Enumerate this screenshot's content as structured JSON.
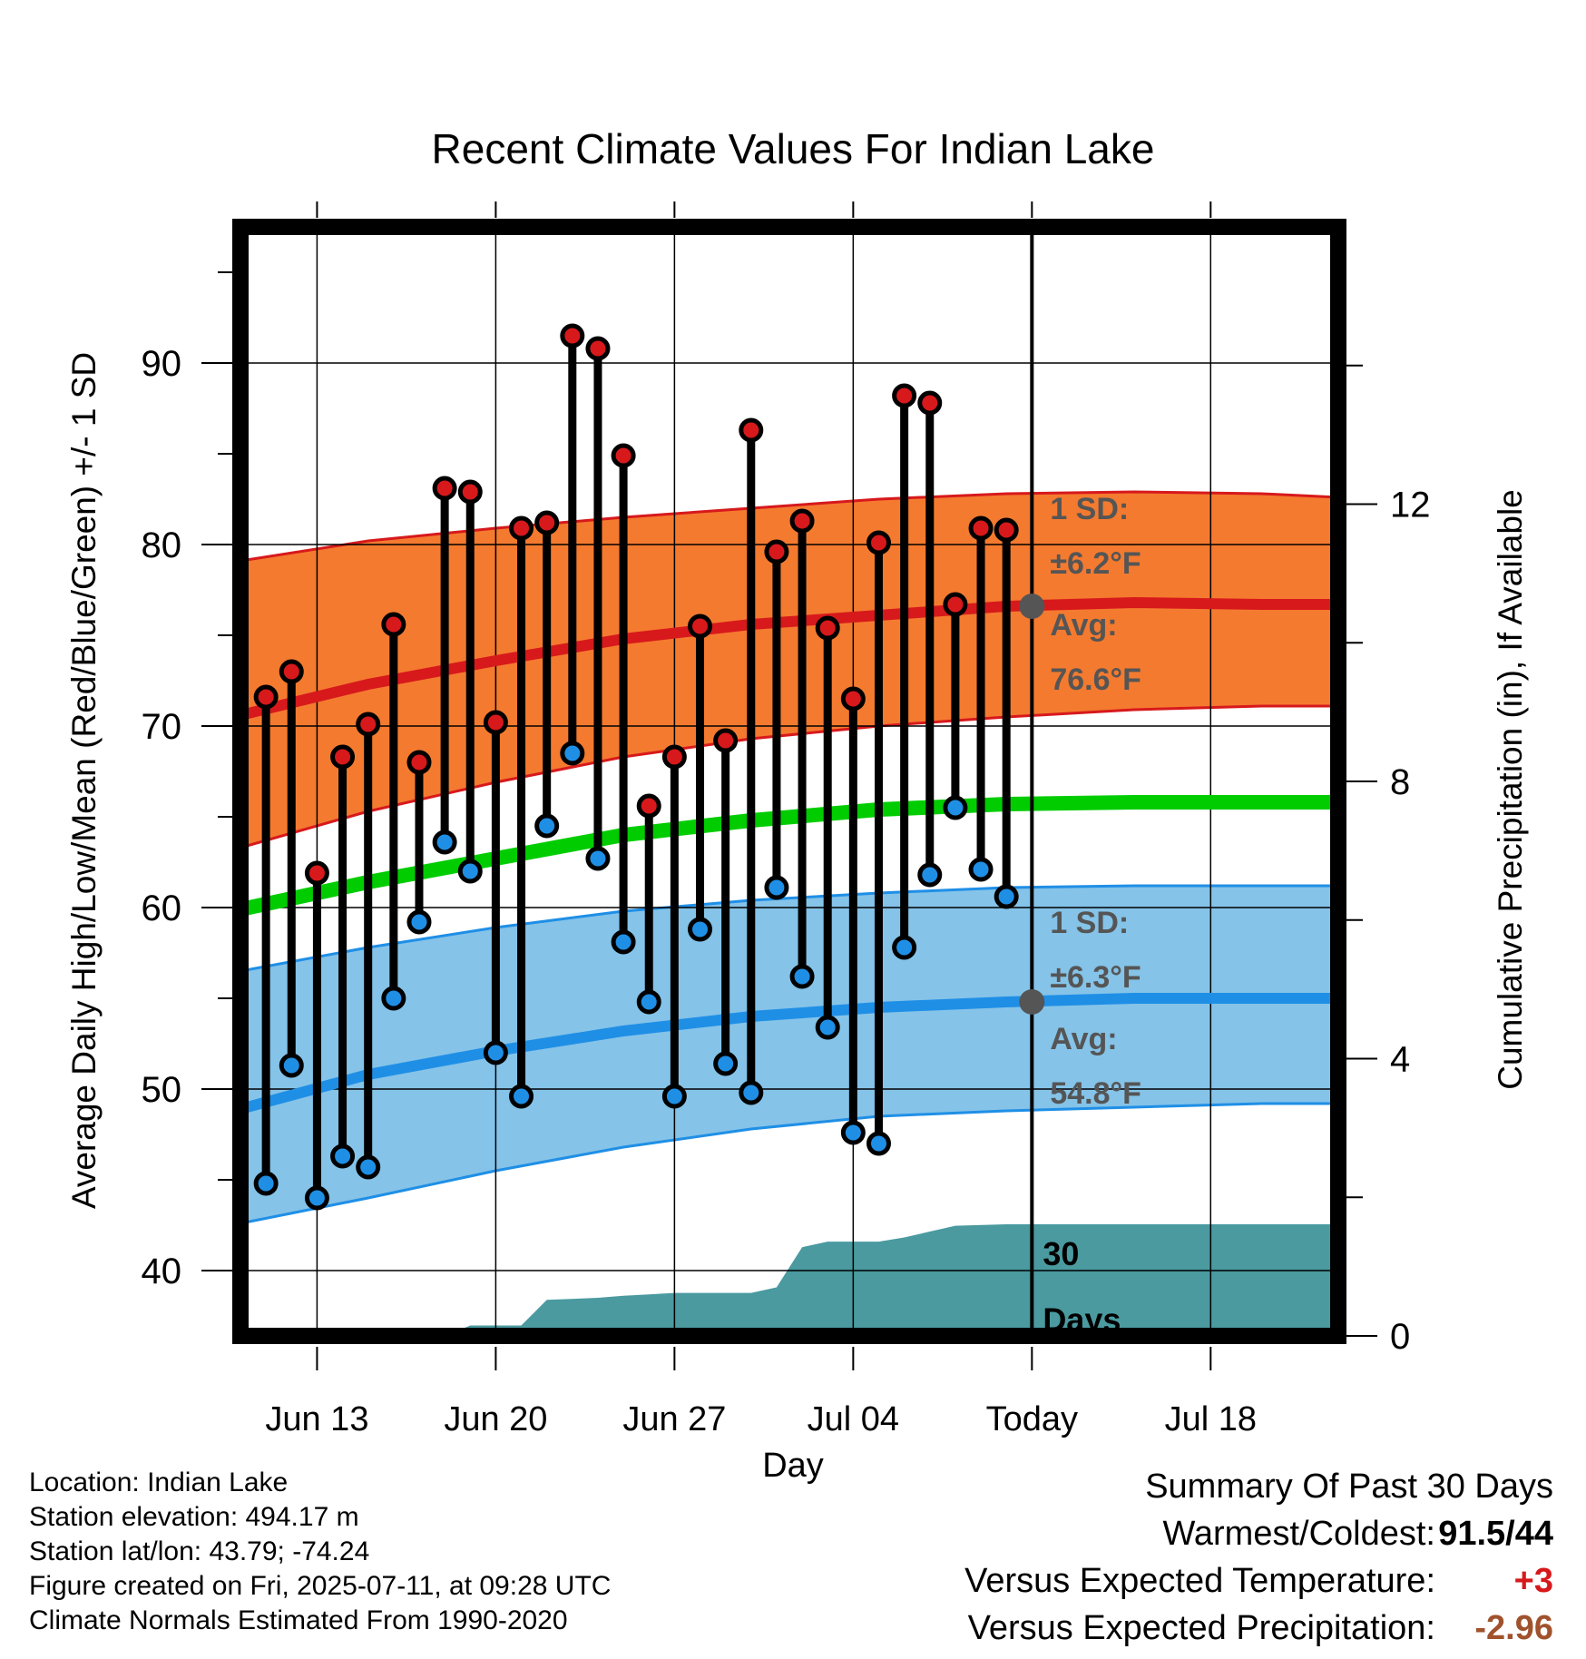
{
  "chart_data": {
    "type": "line",
    "title": "Recent Climate Values For Indian Lake",
    "xlabel": "Day",
    "ylabel": "Average Daily High/Low/Mean (Red/Blue/Green) +/- 1 SD",
    "ylabel_right": "Cumulative Precipitation (in), If Available",
    "xlim": [
      "2025-06-10",
      "2025-07-23"
    ],
    "ylim": [
      36.4,
      97.5
    ],
    "y2lim": [
      0,
      16.0
    ],
    "x_ticks": [
      {
        "date": "2025-06-13",
        "label": "Jun 13"
      },
      {
        "date": "2025-06-20",
        "label": "Jun 20"
      },
      {
        "date": "2025-06-27",
        "label": "Jun 27"
      },
      {
        "date": "2025-07-04",
        "label": "Jul 04"
      },
      {
        "date": "2025-07-11",
        "label": "Today"
      },
      {
        "date": "2025-07-18",
        "label": "Jul 18"
      }
    ],
    "y_ticks": [
      40,
      50,
      60,
      70,
      80,
      90
    ],
    "y2_ticks": [
      0,
      4,
      8,
      12
    ],
    "grid": true,
    "today": "2025-07-11",
    "normals": {
      "x": [
        "2025-06-10",
        "2025-06-15",
        "2025-06-20",
        "2025-06-25",
        "2025-06-30",
        "2025-07-05",
        "2025-07-10",
        "2025-07-15",
        "2025-07-20",
        "2025-07-23"
      ],
      "high_mean": [
        70.6,
        72.3,
        73.6,
        74.8,
        75.6,
        76.1,
        76.6,
        76.8,
        76.7,
        76.7
      ],
      "high_upper": [
        79.1,
        80.2,
        80.9,
        81.5,
        82.0,
        82.5,
        82.8,
        82.9,
        82.8,
        82.6
      ],
      "high_lower": [
        63.3,
        65.3,
        66.9,
        68.3,
        69.3,
        70.0,
        70.5,
        70.9,
        71.1,
        71.1
      ],
      "low_mean": [
        48.9,
        50.8,
        52.1,
        53.2,
        54.0,
        54.5,
        54.8,
        55.0,
        55.0,
        55.0
      ],
      "low_upper": [
        56.5,
        57.8,
        58.9,
        59.8,
        60.4,
        60.8,
        61.1,
        61.2,
        61.2,
        61.2
      ],
      "low_lower": [
        42.6,
        44.0,
        45.5,
        46.8,
        47.8,
        48.5,
        48.8,
        49.0,
        49.2,
        49.2
      ],
      "mean": [
        59.9,
        61.4,
        62.7,
        64.0,
        64.8,
        65.4,
        65.7,
        65.8,
        65.8,
        65.8
      ]
    },
    "band_labels": {
      "high_sd": {
        "line1": "1 SD:",
        "line2": "±6.2°F"
      },
      "high_avg": {
        "line1": "Avg:",
        "line2": "76.6°F"
      },
      "low_sd": {
        "line1": "1 SD:",
        "line2": "±6.3°F"
      },
      "low_avg": {
        "line1": "Avg:",
        "line2": "54.8°F"
      },
      "high_avg_value": 76.6,
      "low_avg_value": 54.8
    },
    "series": [
      {
        "name": "High",
        "color": "#d7191c",
        "x": [
          "2025-06-11",
          "2025-06-12",
          "2025-06-13",
          "2025-06-14",
          "2025-06-15",
          "2025-06-16",
          "2025-06-17",
          "2025-06-18",
          "2025-06-19",
          "2025-06-20",
          "2025-06-21",
          "2025-06-22",
          "2025-06-23",
          "2025-06-24",
          "2025-06-25",
          "2025-06-26",
          "2025-06-27",
          "2025-06-28",
          "2025-06-29",
          "2025-06-30",
          "2025-07-01",
          "2025-07-02",
          "2025-07-03",
          "2025-07-04",
          "2025-07-05",
          "2025-07-06",
          "2025-07-07",
          "2025-07-08",
          "2025-07-09",
          "2025-07-10"
        ],
        "values": [
          71.6,
          73.0,
          61.9,
          68.3,
          70.1,
          75.6,
          68.0,
          83.1,
          82.9,
          70.2,
          80.9,
          81.2,
          91.5,
          90.8,
          84.9,
          65.6,
          68.3,
          75.5,
          69.2,
          86.3,
          79.6,
          81.3,
          75.4,
          71.5,
          80.1,
          88.2,
          87.8,
          76.7,
          80.9,
          80.8
        ]
      },
      {
        "name": "Low",
        "color": "#1f8fe6",
        "x": [
          "2025-06-11",
          "2025-06-12",
          "2025-06-13",
          "2025-06-14",
          "2025-06-15",
          "2025-06-16",
          "2025-06-17",
          "2025-06-18",
          "2025-06-19",
          "2025-06-20",
          "2025-06-21",
          "2025-06-22",
          "2025-06-23",
          "2025-06-24",
          "2025-06-25",
          "2025-06-26",
          "2025-06-27",
          "2025-06-28",
          "2025-06-29",
          "2025-06-30",
          "2025-07-01",
          "2025-07-02",
          "2025-07-03",
          "2025-07-04",
          "2025-07-05",
          "2025-07-06",
          "2025-07-07",
          "2025-07-08",
          "2025-07-09",
          "2025-07-10"
        ],
        "values": [
          44.8,
          51.3,
          44.0,
          46.3,
          45.7,
          55.0,
          59.2,
          63.6,
          62.0,
          52.0,
          49.6,
          64.5,
          68.5,
          62.7,
          58.1,
          54.8,
          49.6,
          58.8,
          51.4,
          49.8,
          61.1,
          56.2,
          53.4,
          47.6,
          47.0,
          57.8,
          61.8,
          65.5,
          62.1,
          60.6
        ]
      }
    ],
    "precipitation": {
      "x": [
        "2025-06-10",
        "2025-06-18",
        "2025-06-19",
        "2025-06-21",
        "2025-06-22",
        "2025-06-24",
        "2025-06-25",
        "2025-06-26",
        "2025-06-27",
        "2025-06-30",
        "2025-07-01",
        "2025-07-02",
        "2025-07-03",
        "2025-07-05",
        "2025-07-06",
        "2025-07-08",
        "2025-07-10",
        "2025-07-23"
      ],
      "values": [
        0.0,
        0.0,
        0.15,
        0.15,
        0.52,
        0.55,
        0.58,
        0.6,
        0.62,
        0.62,
        0.7,
        1.28,
        1.36,
        1.36,
        1.42,
        1.59,
        1.61,
        1.61
      ],
      "label_line1": "30",
      "label_line2": "Days"
    }
  },
  "footer": {
    "location": "Location: Indian Lake",
    "elevation": "Station elevation: 494.17 m",
    "latlon": "Station lat/lon: 43.79; -74.24",
    "created": "Figure created on Fri, 2025-07-11, at 09:28 UTC",
    "normals": "Climate Normals Estimated From 1990-2020"
  },
  "summary": {
    "title": "Summary Of Past 30 Days",
    "warmest_label": "Warmest/Coldest:",
    "warmest_value": "91.5/44",
    "temp_label": "Versus Expected Temperature:",
    "temp_value": "+3",
    "temp_color": "#d7191c",
    "precip_label": "Versus Expected Precipitation:",
    "precip_value": "-2.96",
    "precip_color": "#a0522d"
  },
  "colors": {
    "high_band": "#f47a2f",
    "high_line": "#d7191c",
    "low_band": "#85c3e8",
    "low_line": "#1f8fe6",
    "mean_line": "#00cc00",
    "precip_fill": "#4a9aa0",
    "marker_label": "#555555"
  }
}
